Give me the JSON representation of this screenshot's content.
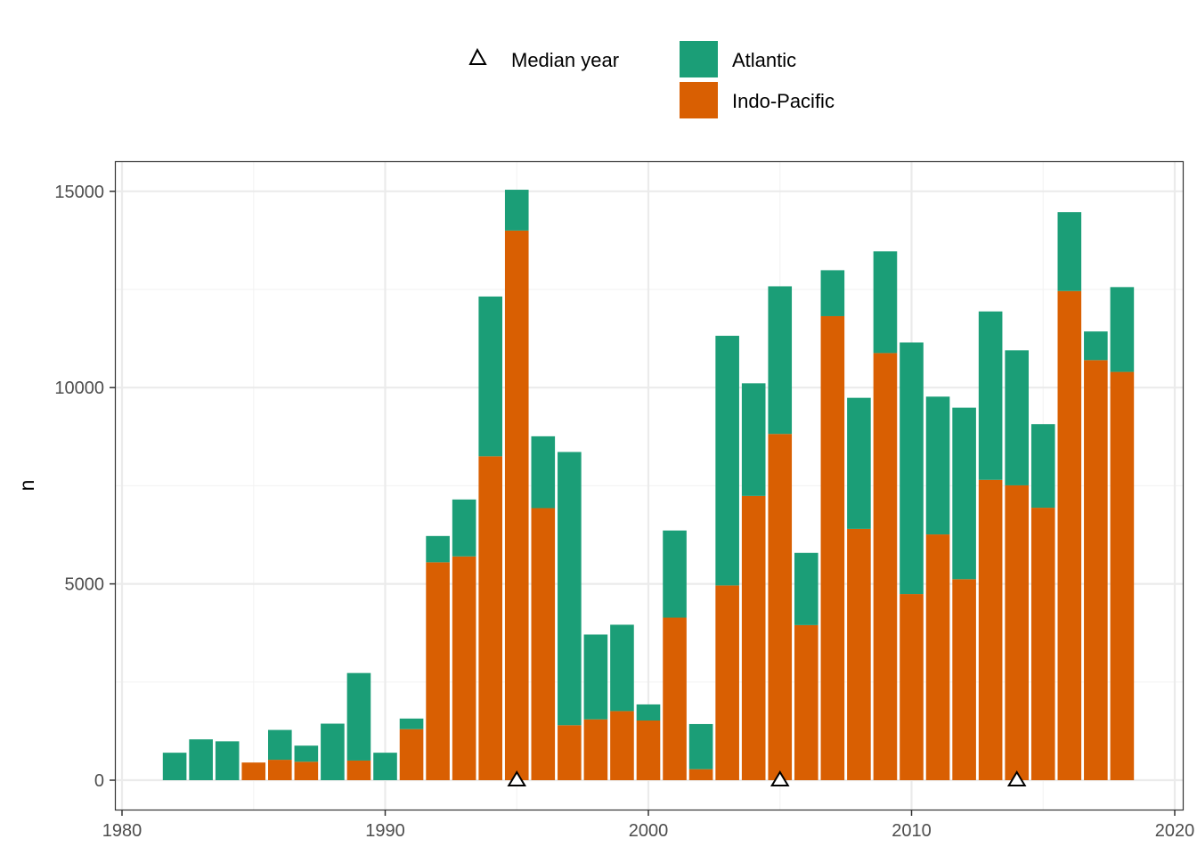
{
  "chart_data": {
    "type": "bar",
    "stacked": true,
    "ylabel": "n",
    "xlabel": "",
    "xlim": [
      1980,
      2020
    ],
    "ylim": [
      0,
      15000
    ],
    "x_ticks": [
      1980,
      1990,
      2000,
      2010,
      2020
    ],
    "y_ticks": [
      0,
      5000,
      10000,
      15000
    ],
    "grid": true,
    "legend_position": "top",
    "x": [
      1982,
      1983,
      1984,
      1985,
      1986,
      1987,
      1988,
      1989,
      1990,
      1991,
      1992,
      1993,
      1994,
      1995,
      1996,
      1997,
      1998,
      1999,
      2000,
      2001,
      2002,
      2003,
      2004,
      2005,
      2006,
      2007,
      2008,
      2009,
      2010,
      2011,
      2012,
      2013,
      2014,
      2015,
      2016,
      2017,
      2018
    ],
    "series": [
      {
        "name": "Indo-Pacific",
        "color": "#D95F02",
        "values": [
          0,
          0,
          0,
          450,
          520,
          470,
          0,
          500,
          0,
          1300,
          5550,
          5700,
          8250,
          14000,
          6930,
          1400,
          1550,
          1760,
          1520,
          4140,
          280,
          4960,
          7240,
          8820,
          3950,
          11820,
          6400,
          10880,
          4740,
          6260,
          5120,
          7650,
          7510,
          6940,
          12460,
          10700,
          10400
        ]
      },
      {
        "name": "Atlantic",
        "color": "#1B9E77",
        "values": [
          700,
          1040,
          990,
          0,
          760,
          410,
          1440,
          2230,
          700,
          270,
          670,
          1450,
          4070,
          1040,
          1830,
          6960,
          2160,
          2200,
          410,
          2220,
          1150,
          6360,
          2870,
          3760,
          1840,
          1170,
          3340,
          2590,
          6410,
          3510,
          4370,
          4290,
          3440,
          2130,
          2010,
          730,
          2160
        ]
      }
    ],
    "median_year": {
      "label": "Median year",
      "values": [
        1995,
        2005,
        2014
      ]
    }
  },
  "legend": {
    "median_label": "Median year",
    "atlantic_label": "Atlantic",
    "indo_pacific_label": "Indo-Pacific"
  },
  "colors": {
    "atlantic": "#1B9E77",
    "indo_pacific": "#D95F02",
    "grid_major": "#EBEBEB",
    "grid_minor": "#F4F4F4",
    "panel_border": "#333333"
  }
}
